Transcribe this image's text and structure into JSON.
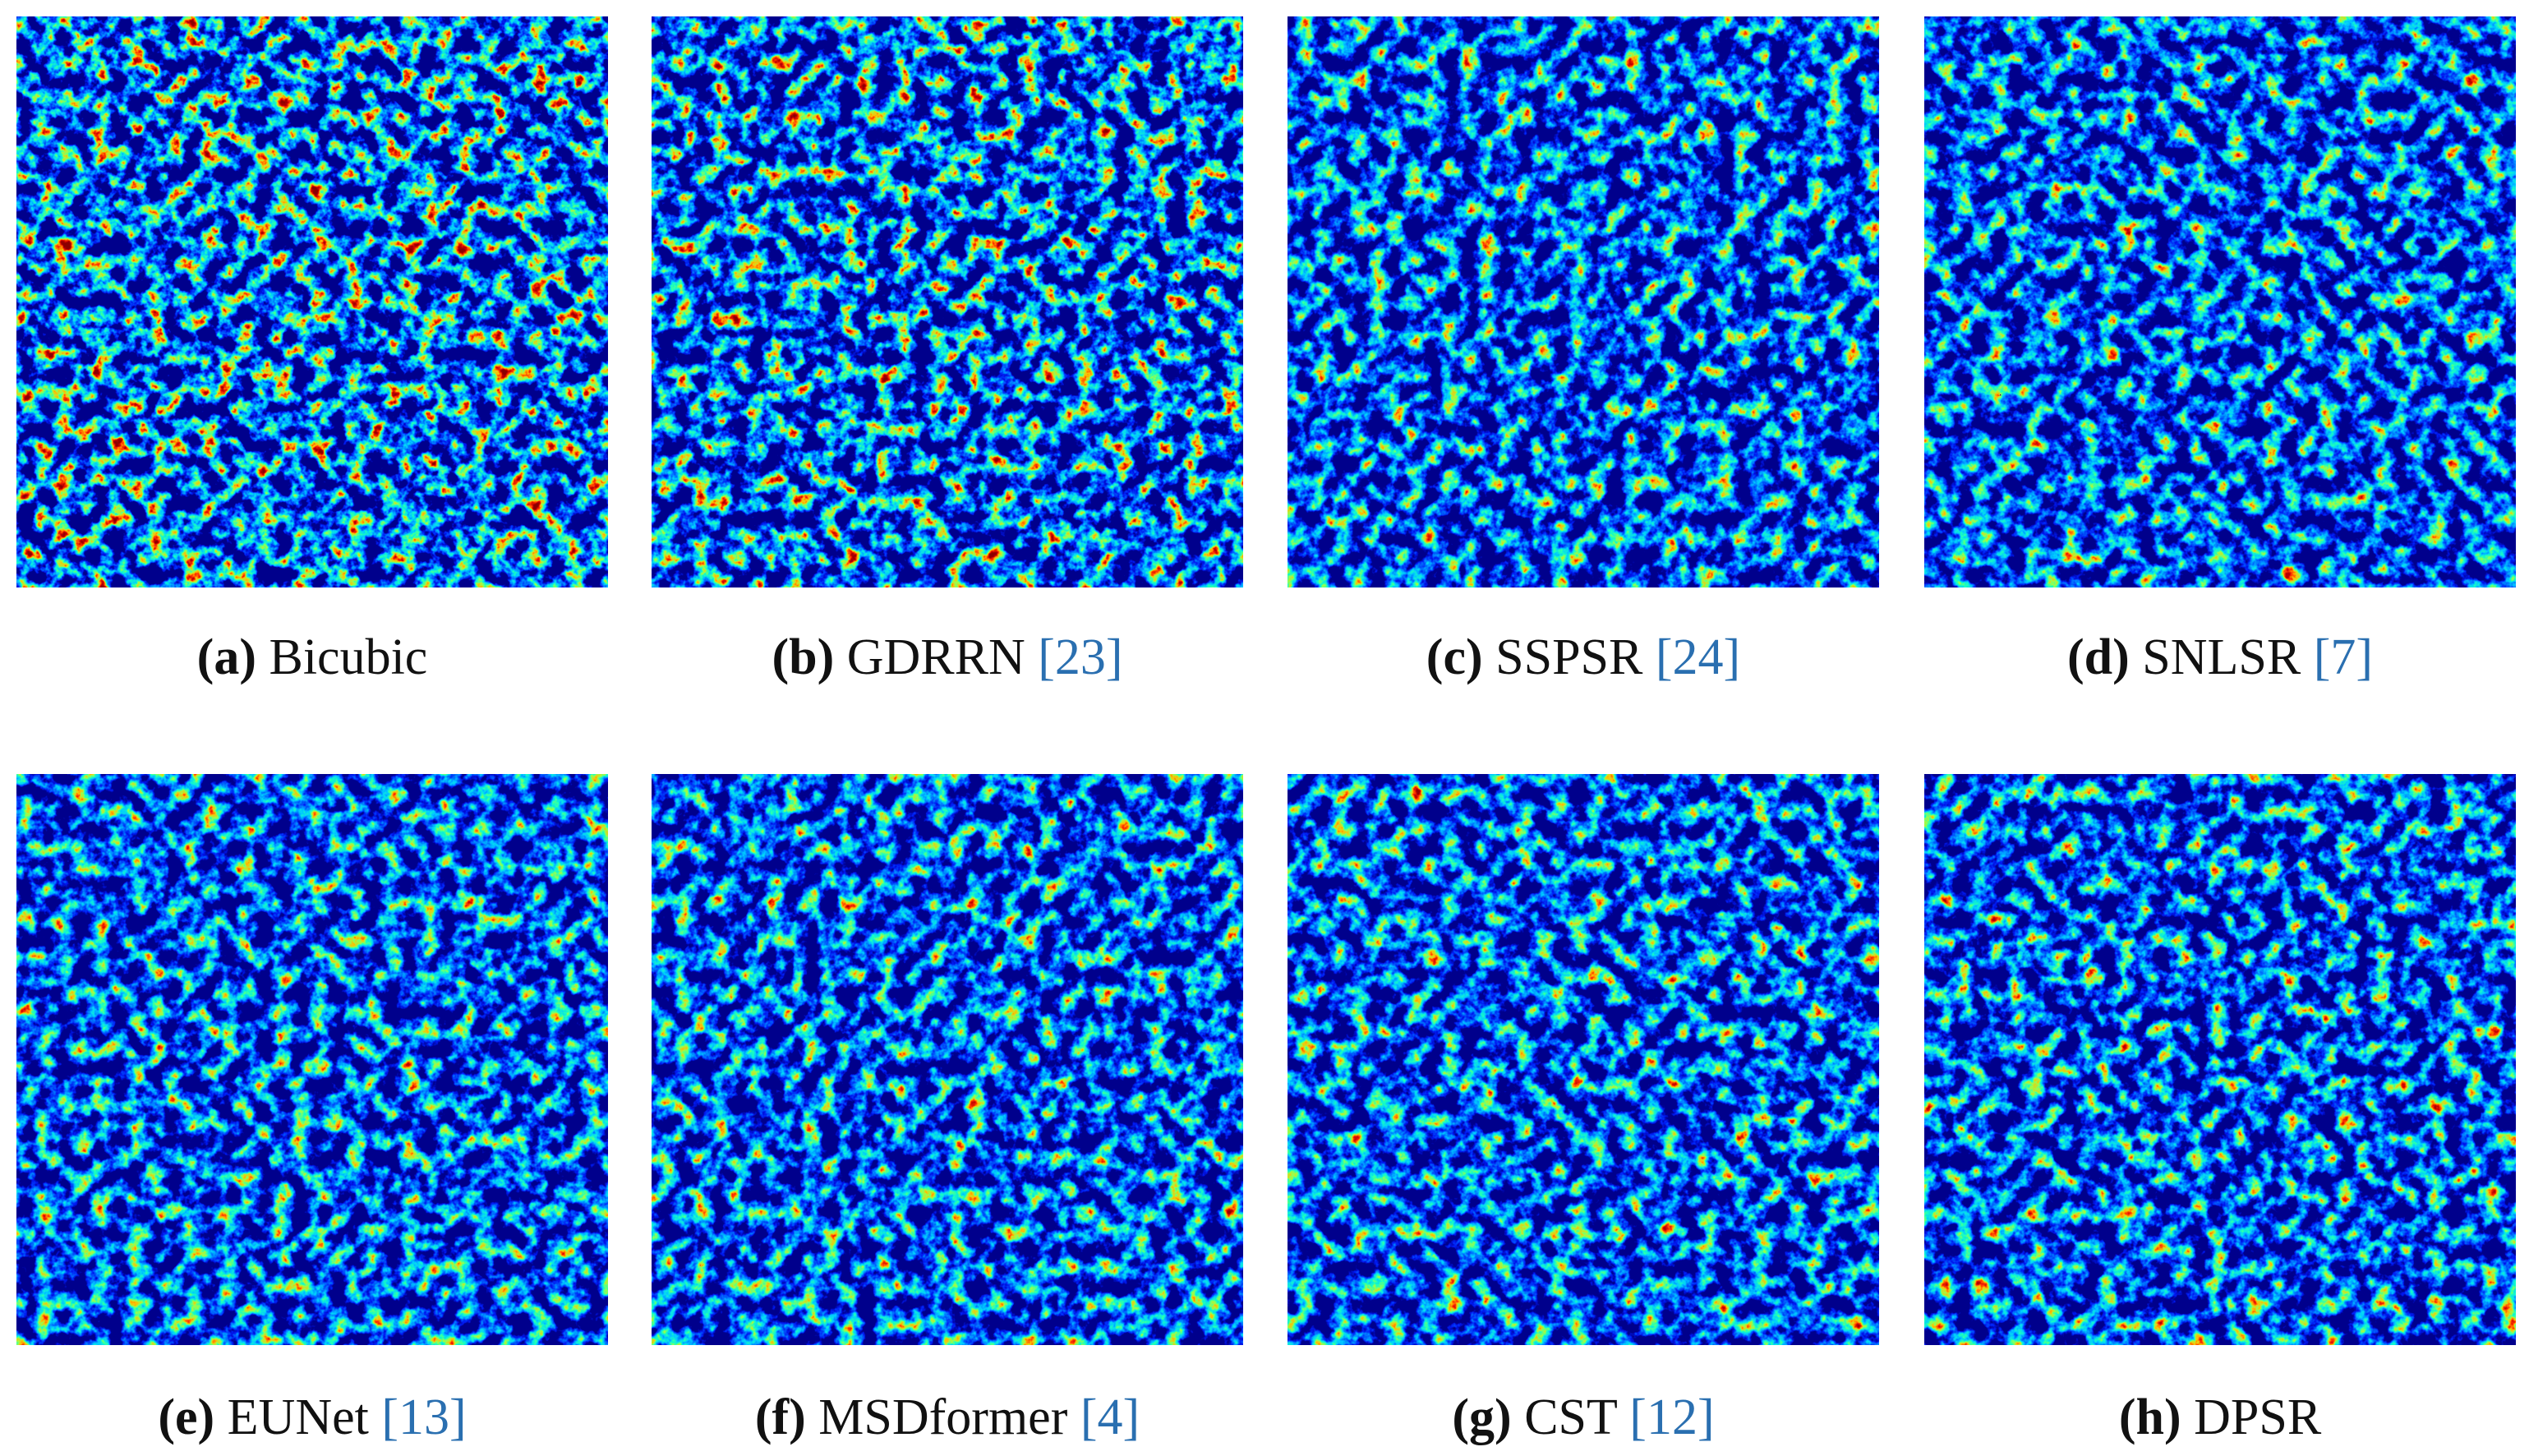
{
  "panels": [
    {
      "letter": "(a)",
      "method": "Bicubic"
    },
    {
      "letter": "(b)",
      "method": "GDRRN",
      "ref": "[23]"
    },
    {
      "letter": "(c)",
      "method": "SSPSR",
      "ref": "[24]"
    },
    {
      "letter": "(d)",
      "method": "SNLSR",
      "ref": "[7]"
    },
    {
      "letter": "(e)",
      "method": "EUNet",
      "ref": "[13]"
    },
    {
      "letter": "(f)",
      "method": "MSDformer",
      "ref": "[4]"
    },
    {
      "letter": "(g)",
      "method": "CST",
      "ref": "[12]"
    },
    {
      "letter": "(h)",
      "method": "DPSR"
    }
  ]
}
